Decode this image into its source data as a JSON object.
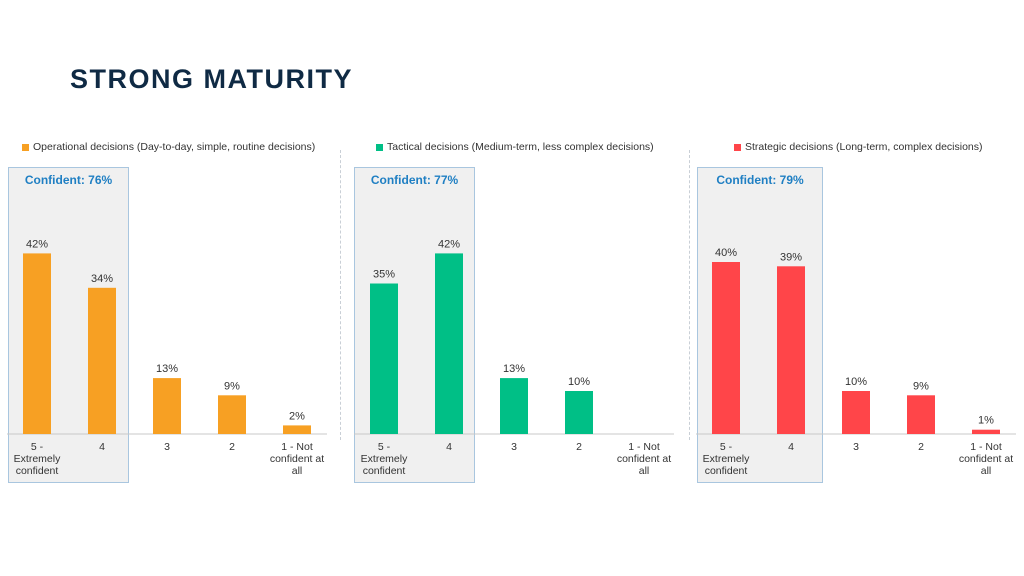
{
  "title": "STRONG MATURITY",
  "chart_data": [
    {
      "type": "bar",
      "legend": "Operational decisions (Day-to-day, simple, routine decisions)",
      "color": "#f7a023",
      "confident_label": "Confident: 76%",
      "categories": [
        "5 - Extremely confident",
        "4",
        "3",
        "2",
        "1 - Not confident at all"
      ],
      "category_lines": [
        [
          "5  -",
          "Extremely",
          "confident"
        ],
        [
          "4"
        ],
        [
          "3"
        ],
        [
          "2"
        ],
        [
          "1 - Not",
          "confident at",
          "all"
        ]
      ],
      "values": [
        42,
        34,
        13,
        9,
        2
      ],
      "value_labels": [
        "42%",
        "34%",
        "13%",
        "9%",
        "2%"
      ],
      "ylim": [
        0,
        50
      ]
    },
    {
      "type": "bar",
      "legend": "Tactical decisions (Medium-term, less complex decisions)",
      "color": "#00bf86",
      "confident_label": "Confident: 77%",
      "categories": [
        "5 - Extremely confident",
        "4",
        "3",
        "2",
        "1 - Not confident at all"
      ],
      "category_lines": [
        [
          "5  -",
          "Extremely",
          "confident"
        ],
        [
          "4"
        ],
        [
          "3"
        ],
        [
          "2"
        ],
        [
          "1 - Not",
          "confident at",
          "all"
        ]
      ],
      "values": [
        35,
        42,
        13,
        10,
        0
      ],
      "value_labels": [
        "35%",
        "42%",
        "13%",
        "10%",
        ""
      ],
      "ylim": [
        0,
        50
      ]
    },
    {
      "type": "bar",
      "legend": "Strategic decisions (Long-term, complex decisions)",
      "color": "#ff4549",
      "confident_label": "Confident: 79%",
      "categories": [
        "5 - Extremely confident",
        "4",
        "3",
        "2",
        "1 - Not confident at all"
      ],
      "category_lines": [
        [
          "5  -",
          "Extremely",
          "confident"
        ],
        [
          "4"
        ],
        [
          "3"
        ],
        [
          "2"
        ],
        [
          "1 - Not",
          "confident at",
          "all"
        ]
      ],
      "values": [
        40,
        39,
        10,
        9,
        1
      ],
      "value_labels": [
        "40%",
        "39%",
        "10%",
        "9%",
        "1%"
      ],
      "ylim": [
        0,
        50
      ]
    }
  ]
}
